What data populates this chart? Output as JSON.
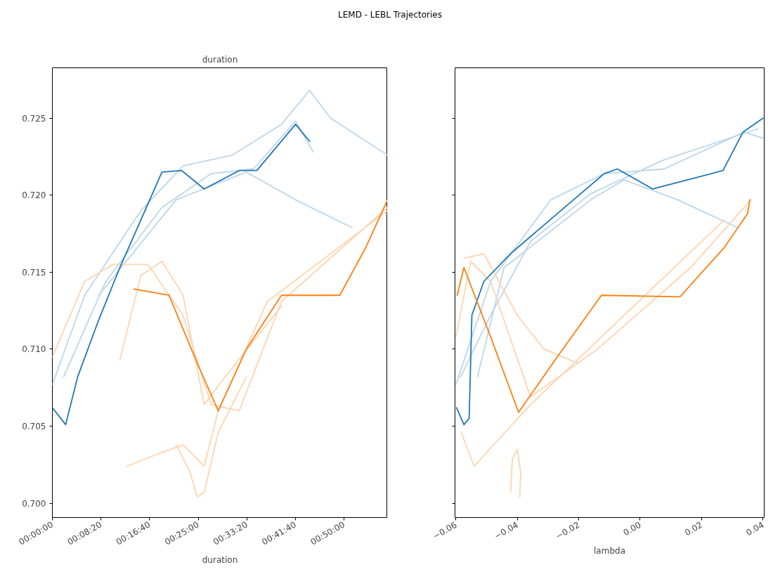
{
  "chart_data": [
    {
      "type": "line",
      "title": "duration",
      "xlabel": "duration",
      "annotations": [
        "LEMD - LEBL Trajectories"
      ],
      "xlim": [
        0,
        3447
      ],
      "ylim": [
        0.69907,
        0.72827
      ],
      "xticks": [
        {
          "value": 0,
          "label": "00:00:00"
        },
        {
          "value": 500,
          "label": "00:08:20"
        },
        {
          "value": 1000,
          "label": "00:16:40"
        },
        {
          "value": 1500,
          "label": "00:25:00"
        },
        {
          "value": 2000,
          "label": "00:33:20"
        },
        {
          "value": 2500,
          "label": "00:41:40"
        },
        {
          "value": 3000,
          "label": "00:50:00"
        }
      ],
      "yticks": [
        {
          "value": 0.7,
          "label": "0.700"
        },
        {
          "value": 0.705,
          "label": "0.705"
        },
        {
          "value": 0.71,
          "label": "0.710"
        },
        {
          "value": 0.715,
          "label": "0.715"
        },
        {
          "value": 0.72,
          "label": "0.720"
        },
        {
          "value": 0.725,
          "label": "0.725"
        }
      ],
      "grid": false,
      "series": [
        {
          "color": "#bcd6ea",
          "x": [
            0,
            332,
            911,
            1344,
            1850,
            2356,
            2645,
            2862,
            3447
          ],
          "values": [
            0.7077,
            0.7135,
            0.719,
            0.7219,
            0.7226,
            0.7246,
            0.7268,
            0.725,
            0.7226
          ]
        },
        {
          "color": "#bcd6ea",
          "x": [
            477,
            1272,
            1995,
            2501,
            3079
          ],
          "values": [
            0.7135,
            0.7197,
            0.7215,
            0.7197,
            0.7179
          ]
        },
        {
          "color": "#bcd6ea",
          "x": [
            116,
            549,
            1127,
            1633,
            2067,
            2501,
            2681
          ],
          "values": [
            0.7082,
            0.7144,
            0.7192,
            0.7214,
            0.7217,
            0.7248,
            0.7228
          ]
        },
        {
          "color": "#ffd4b0",
          "x": [
            0,
            332,
            622,
            983,
            1344,
            1633,
            1922,
            2356,
            3447
          ],
          "values": [
            0.7095,
            0.7144,
            0.7155,
            0.7155,
            0.7122,
            0.7064,
            0.706,
            0.7131,
            0.7192
          ]
        },
        {
          "color": "#ffd4b0",
          "x": [
            766,
            1127,
            1344,
            1561,
            1706,
            2211,
            3447
          ],
          "values": [
            0.7024,
            0.7033,
            0.7038,
            0.7024,
            0.706,
            0.7131,
            0.719
          ]
        },
        {
          "color": "#ffd4b0",
          "x": [
            694,
            911,
            1127,
            1344,
            1561,
            1778,
            2356
          ],
          "values": [
            0.7093,
            0.7148,
            0.7157,
            0.7135,
            0.7064,
            0.7082,
            0.7128
          ]
        },
        {
          "color": "#ffd4b0",
          "x": [
            1272,
            1417,
            1489,
            1561,
            1706,
            1995
          ],
          "values": [
            0.7038,
            0.702,
            0.7004,
            0.7007,
            0.7046,
            0.7082
          ]
        },
        {
          "color": "#1f77b4",
          "x": [
            0,
            137,
            260,
            477,
            694,
            911,
            1127,
            1330,
            1561,
            1922,
            2103,
            2501,
            2645
          ],
          "values": [
            0.7062,
            0.7051,
            0.7082,
            0.7119,
            0.7153,
            0.7184,
            0.7215,
            0.7216,
            0.7204,
            0.7216,
            0.7216,
            0.7246,
            0.7235
          ]
        },
        {
          "color": "#ff7f0e",
          "x": [
            838,
            1200,
            1489,
            1706,
            1995,
            2356,
            2956,
            3223,
            3447
          ],
          "values": [
            0.7139,
            0.7135,
            0.7091,
            0.706,
            0.71,
            0.7135,
            0.7135,
            0.7166,
            0.7197
          ]
        }
      ]
    },
    {
      "type": "line",
      "xlabel": "lambda",
      "xlim": [
        -0.0603,
        0.0404
      ],
      "ylim": [
        0.69907,
        0.72827
      ],
      "tick_labels": "x",
      "xticks": [
        {
          "value": -0.06,
          "label": "−0.06"
        },
        {
          "value": -0.04,
          "label": "−0.04"
        },
        {
          "value": -0.02,
          "label": "−0.02"
        },
        {
          "value": 0.0,
          "label": "0.00"
        },
        {
          "value": 0.02,
          "label": "0.02"
        },
        {
          "value": 0.04,
          "label": "0.04"
        }
      ],
      "yticks": [
        0.7,
        0.705,
        0.71,
        0.715,
        0.72,
        0.725
      ],
      "grid": false,
      "series": [
        {
          "color": "#bcd6ea",
          "x": [
            -0.06,
            -0.0487,
            -0.0291,
            -0.0117,
            0.0078,
            0.0339,
            0.04
          ],
          "values": [
            0.7077,
            0.7144,
            0.7197,
            0.7214,
            0.7217,
            0.7241,
            0.7237
          ]
        },
        {
          "color": "#bcd6ea",
          "x": [
            -0.0585,
            -0.0487,
            -0.0357,
            -0.0161,
            0.0078,
            0.0383
          ],
          "values": [
            0.7082,
            0.7122,
            0.717,
            0.7201,
            0.7223,
            0.7243
          ]
        },
        {
          "color": "#bcd6ea",
          "x": [
            -0.053,
            -0.0443,
            -0.0161,
            -0.0052,
            0.0122,
            0.0317
          ],
          "values": [
            0.7082,
            0.7153,
            0.7197,
            0.721,
            0.7197,
            0.7179
          ]
        },
        {
          "color": "#ffd4b0",
          "x": [
            -0.06,
            -0.0552,
            -0.0487,
            -0.0357,
            -0.0139,
            0.0165,
            0.0361
          ],
          "values": [
            0.7108,
            0.7157,
            0.7144,
            0.7069,
            0.71,
            0.7153,
            0.7197
          ]
        },
        {
          "color": "#ffd4b0",
          "x": [
            -0.0583,
            -0.0541,
            -0.0357,
            -0.0052,
            0.0274
          ],
          "values": [
            0.7046,
            0.7024,
            0.7064,
            0.7122,
            0.7184
          ]
        },
        {
          "color": "#ffd4b0",
          "x": [
            -0.0574,
            -0.0509,
            -0.04,
            -0.0313,
            -0.0204
          ],
          "values": [
            0.7159,
            0.7162,
            0.7122,
            0.71,
            0.7091
          ]
        },
        {
          "color": "#ffd4b0",
          "x": [
            -0.0422,
            -0.0416,
            -0.04,
            -0.0389,
            -0.0392
          ],
          "values": [
            0.7007,
            0.7029,
            0.7035,
            0.702,
            0.7004
          ]
        },
        {
          "color": "#1f77b4",
          "x": [
            -0.0598,
            -0.0574,
            -0.0557,
            -0.0548,
            -0.0509,
            -0.0422,
            -0.027,
            -0.0117,
            -0.0074,
            0.0041,
            0.027,
            0.0335,
            0.04
          ],
          "values": [
            0.7062,
            0.7051,
            0.7055,
            0.7122,
            0.7144,
            0.7162,
            0.7188,
            0.7214,
            0.7217,
            0.7204,
            0.7216,
            0.7241,
            0.725
          ]
        },
        {
          "color": "#ff7f0e",
          "x": [
            -0.0596,
            -0.0574,
            -0.0487,
            -0.0396,
            -0.027,
            -0.0126,
            0.013,
            0.0274,
            0.035,
            0.0357
          ],
          "values": [
            0.7135,
            0.7153,
            0.7108,
            0.7059,
            0.7095,
            0.7135,
            0.7134,
            0.7166,
            0.7188,
            0.7197
          ]
        }
      ]
    }
  ]
}
